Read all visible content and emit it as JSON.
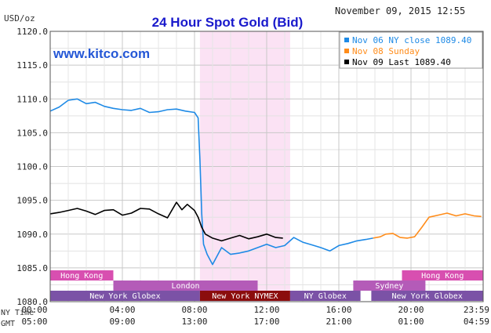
{
  "chart_data": {
    "type": "line",
    "title": "24 Hour Spot Gold (Bid)",
    "unit_label": "USD/oz",
    "timestamp": "November 09, 2015 12:55",
    "watermark": "www.kitco.com",
    "y_axis": {
      "ylim": [
        1080,
        1120
      ],
      "ticks": [
        "1120.0",
        "1115.0",
        "1110.0",
        "1105.0",
        "1100.0",
        "1095.0",
        "1090.0",
        "1085.0",
        "1080.0"
      ]
    },
    "x_axis": {
      "row_labels": [
        "NY Time",
        "GMT"
      ],
      "ny_time_ticks": [
        "00:00",
        "04:00",
        "08:00",
        "12:00",
        "16:00",
        "20:00",
        "23:59"
      ],
      "gmt_ticks": [
        "05:00",
        "09:00",
        "13:00",
        "17:00",
        "21:00",
        "01:00",
        "04:59"
      ]
    },
    "grid": true,
    "legend_position": "top-right",
    "legend": [
      {
        "label": "Nov 06 NY close 1089.40",
        "color": "#1e8ae6"
      },
      {
        "label": "Nov 08 Sunday",
        "color": "#ff8c1a"
      },
      {
        "label": "Nov 09 Last 1089.40",
        "color": "#000000"
      }
    ],
    "highlight_band": {
      "from_hour": 8.3,
      "to_hour": 13.3,
      "color": "#fbe2f4"
    },
    "series": [
      {
        "name": "Nov 06 NY close 1089.40",
        "color": "#1e8ae6",
        "x": [
          0,
          0.5,
          1,
          1.5,
          2,
          2.5,
          3,
          3.5,
          4,
          4.5,
          5,
          5.5,
          6,
          6.5,
          7,
          7.5,
          8,
          8.2,
          8.3,
          8.4,
          8.5,
          8.7,
          9,
          9.3,
          9.5,
          10,
          10.5,
          11,
          11.5,
          12,
          12.5,
          13,
          13.5,
          14,
          14.5,
          15,
          15.5,
          16,
          16.5,
          17,
          17.5,
          17.9
        ],
        "y": [
          1108.2,
          1108.8,
          1109.8,
          1110.0,
          1109.3,
          1109.5,
          1108.9,
          1108.6,
          1108.4,
          1108.3,
          1108.6,
          1108.0,
          1108.1,
          1108.4,
          1108.5,
          1108.2,
          1108.0,
          1107.2,
          1101.0,
          1093.0,
          1088.5,
          1087.0,
          1085.5,
          1087.0,
          1088.0,
          1087.0,
          1087.2,
          1087.5,
          1088.0,
          1088.5,
          1088.0,
          1088.3,
          1089.5,
          1088.8,
          1088.4,
          1088.0,
          1087.5,
          1088.3,
          1088.6,
          1089.0,
          1089.2,
          1089.4
        ]
      },
      {
        "name": "Nov 08 Sunday",
        "color": "#ff8c1a",
        "x": [
          17.9,
          18.3,
          18.6,
          19.0,
          19.4,
          19.8,
          20.2,
          20.6,
          21.0,
          21.5,
          22.0,
          22.5,
          23.0,
          23.5,
          23.9
        ],
        "y": [
          1089.4,
          1089.6,
          1090.0,
          1090.1,
          1089.5,
          1089.4,
          1089.6,
          1091.0,
          1092.5,
          1092.8,
          1093.1,
          1092.7,
          1093.0,
          1092.7,
          1092.6
        ]
      },
      {
        "name": "Nov 09 Last 1089.40",
        "color": "#000000",
        "x": [
          0,
          0.5,
          1,
          1.5,
          2,
          2.5,
          3,
          3.5,
          4,
          4.5,
          5,
          5.5,
          6,
          6.5,
          7,
          7.3,
          7.6,
          8,
          8.2,
          8.4,
          8.6,
          9,
          9.5,
          10,
          10.5,
          11,
          11.5,
          12,
          12.5,
          12.9
        ],
        "y": [
          1093.0,
          1093.2,
          1093.5,
          1093.8,
          1093.4,
          1092.9,
          1093.5,
          1093.6,
          1092.8,
          1093.1,
          1093.8,
          1093.7,
          1093.0,
          1092.4,
          1094.7,
          1093.6,
          1094.4,
          1093.5,
          1092.5,
          1091.0,
          1090.0,
          1089.4,
          1089.0,
          1089.4,
          1089.8,
          1089.3,
          1089.6,
          1090.0,
          1089.5,
          1089.4
        ]
      }
    ],
    "sessions": [
      {
        "name": "Hong Kong",
        "row": 0,
        "from_hour": 0,
        "to_hour": 3.5,
        "color": "#d84fb0"
      },
      {
        "name": "Hong Kong",
        "row": 0,
        "from_hour": 19.5,
        "to_hour": 24,
        "color": "#d84fb0"
      },
      {
        "name": "London",
        "row": 1,
        "from_hour": 3.5,
        "to_hour": 11.5,
        "color": "#b45bb8"
      },
      {
        "name": "Sydney",
        "row": 1,
        "from_hour": 16.8,
        "to_hour": 20.8,
        "color": "#b45bb8"
      },
      {
        "name": "New York Globex",
        "row": 2,
        "from_hour": 0,
        "to_hour": 8.3,
        "color": "#7b52a6"
      },
      {
        "name": "New York NYMEX",
        "row": 2,
        "from_hour": 8.3,
        "to_hour": 13.3,
        "color": "#8b0d0d"
      },
      {
        "name": "NY Globex",
        "row": 2,
        "from_hour": 13.3,
        "to_hour": 17.2,
        "color": "#7b52a6"
      },
      {
        "name": "New York Globex",
        "row": 2,
        "from_hour": 17.8,
        "to_hour": 24,
        "color": "#7b52a6"
      }
    ]
  }
}
